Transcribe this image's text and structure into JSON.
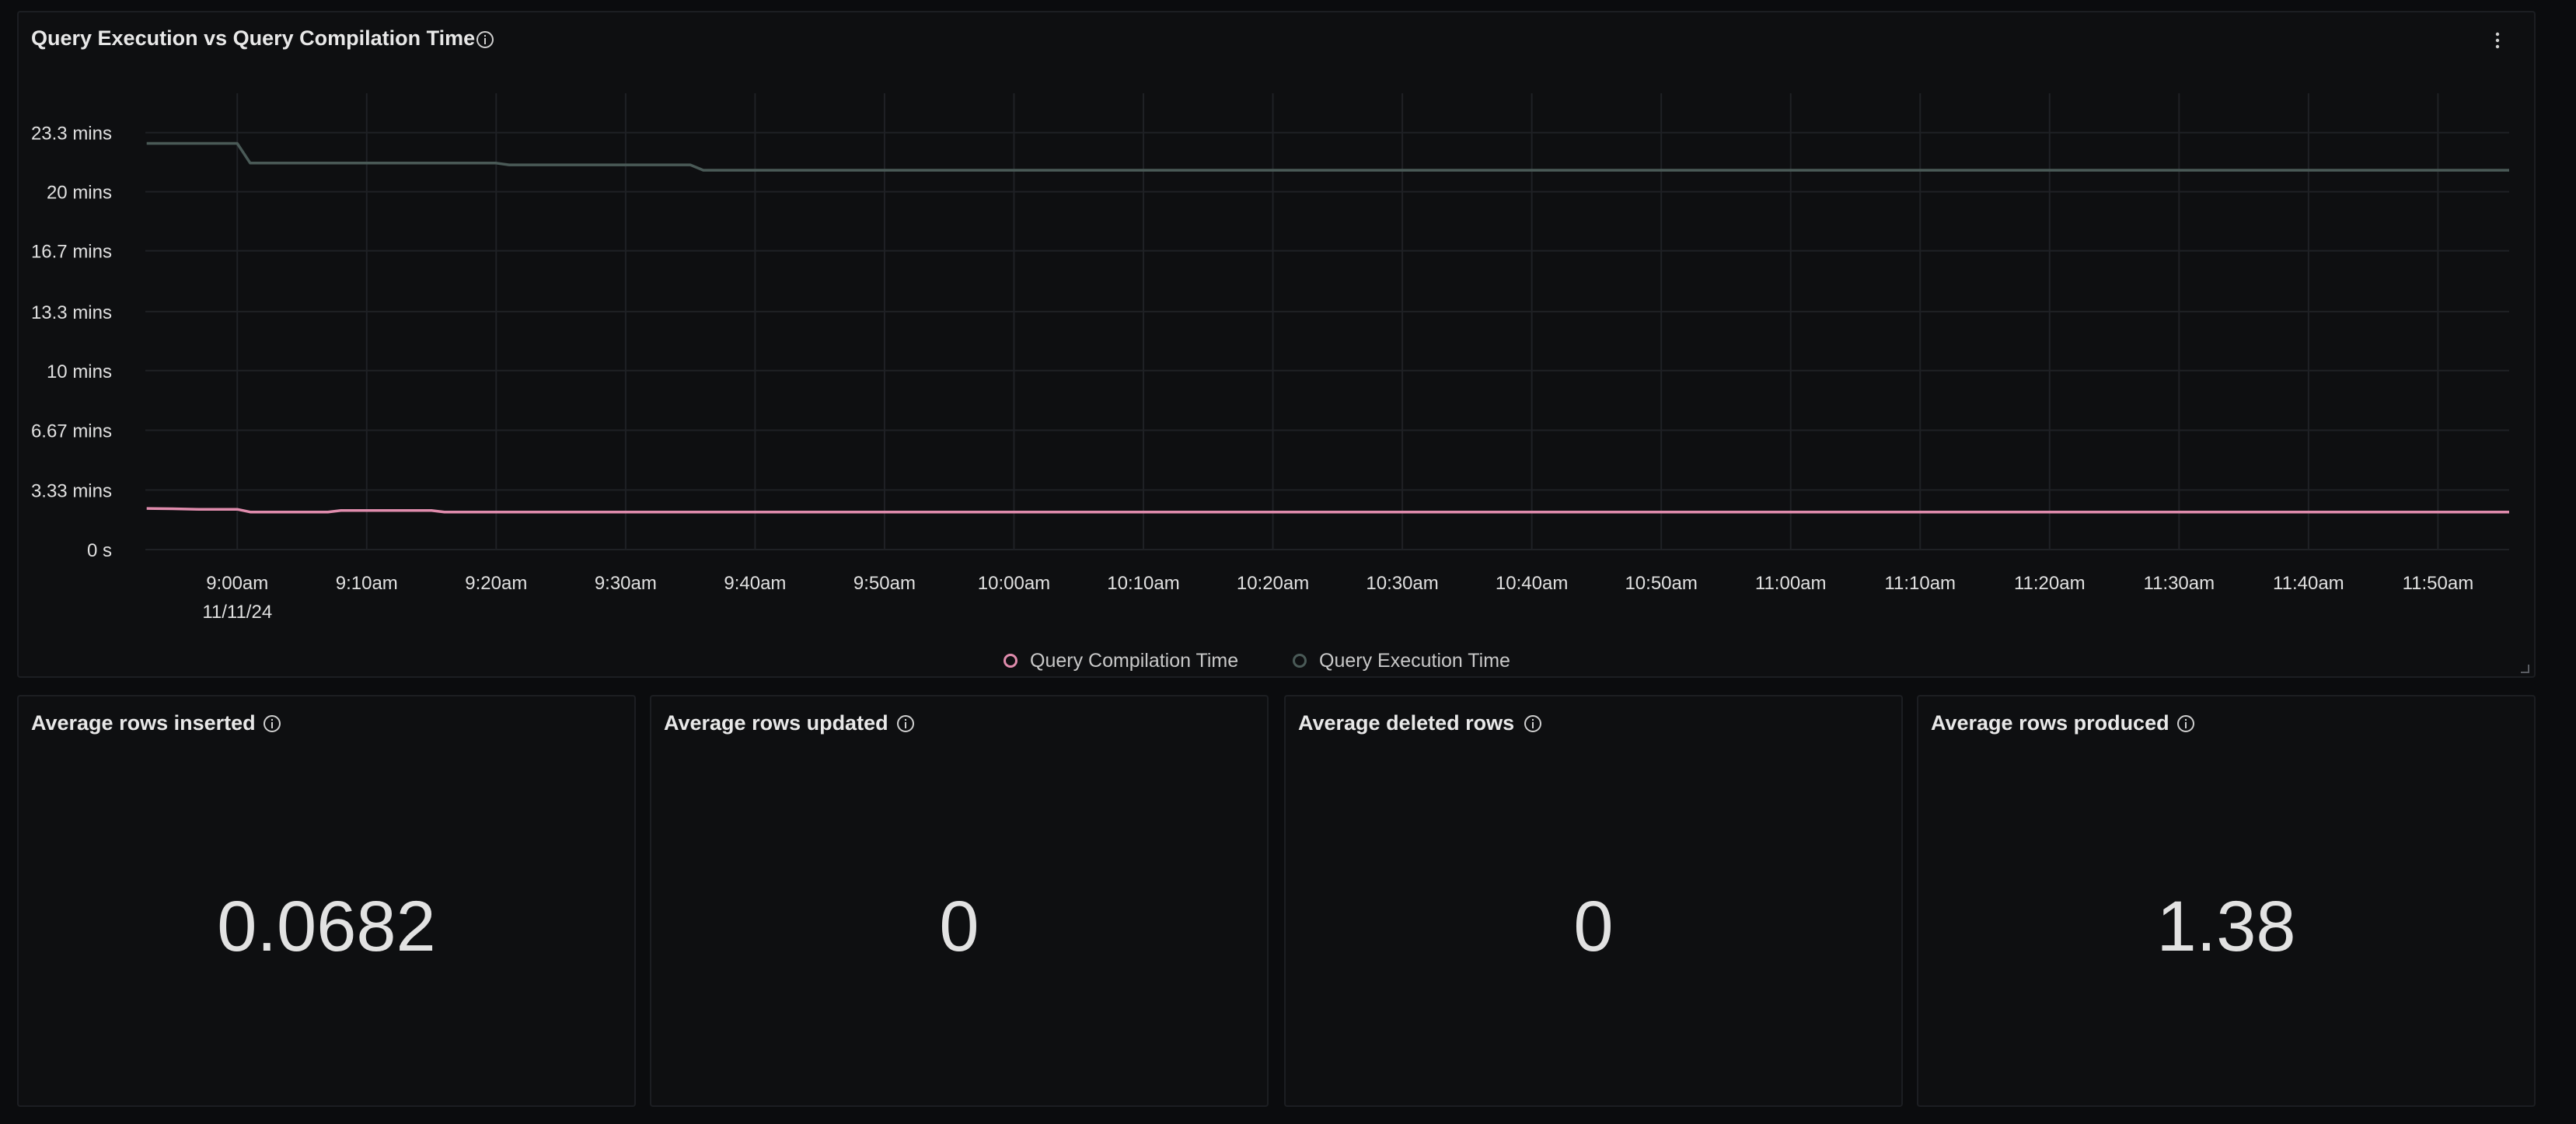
{
  "chart_panel": {
    "title": "Query Execution vs Query Compilation Time"
  },
  "chart_data": {
    "type": "line",
    "x_ticks": [
      "9:00am",
      "9:10am",
      "9:20am",
      "9:30am",
      "9:40am",
      "9:50am",
      "10:00am",
      "10:10am",
      "10:20am",
      "10:30am",
      "10:40am",
      "10:50am",
      "11:00am",
      "11:10am",
      "11:20am",
      "11:30am",
      "11:40am",
      "11:50am"
    ],
    "x_date_label": "11/11/24",
    "x_range_minutes": [
      -7.1,
      175.5
    ],
    "y_ticks": [
      "0 s",
      "3.33 mins",
      "6.67 mins",
      "10 mins",
      "13.3 mins",
      "16.7 mins",
      "20 mins",
      "23.3 mins"
    ],
    "y_tick_values": [
      0,
      3.33,
      6.67,
      10,
      13.3,
      16.7,
      20,
      23.3
    ],
    "ylim": [
      0,
      25.5
    ],
    "x_unit": "minutes after 9:00am",
    "y_unit": "minutes",
    "grid": true,
    "legend": "bottom-center",
    "series": [
      {
        "name": "Query Compilation Time",
        "color": "#e08cad",
        "points": [
          [
            -7,
            2.3
          ],
          [
            -5,
            2.28
          ],
          [
            -3,
            2.25
          ],
          [
            0,
            2.25
          ],
          [
            1,
            2.1
          ],
          [
            7,
            2.1
          ],
          [
            8,
            2.18
          ],
          [
            15,
            2.18
          ],
          [
            16,
            2.1
          ],
          [
            40,
            2.1
          ],
          [
            175.5,
            2.1
          ]
        ]
      },
      {
        "name": "Query Execution Time",
        "color": "#4a5a57",
        "points": [
          [
            -7,
            22.7
          ],
          [
            0,
            22.7
          ],
          [
            1,
            21.6
          ],
          [
            20,
            21.6
          ],
          [
            21,
            21.5
          ],
          [
            35,
            21.5
          ],
          [
            36,
            21.2
          ],
          [
            175.5,
            21.2
          ]
        ]
      }
    ]
  },
  "stats": [
    {
      "title": "Average rows inserted",
      "value": "0.0682"
    },
    {
      "title": "Average rows updated",
      "value": "0"
    },
    {
      "title": "Average deleted rows",
      "value": "0"
    },
    {
      "title": "Average rows produced",
      "value": "1.38"
    }
  ]
}
